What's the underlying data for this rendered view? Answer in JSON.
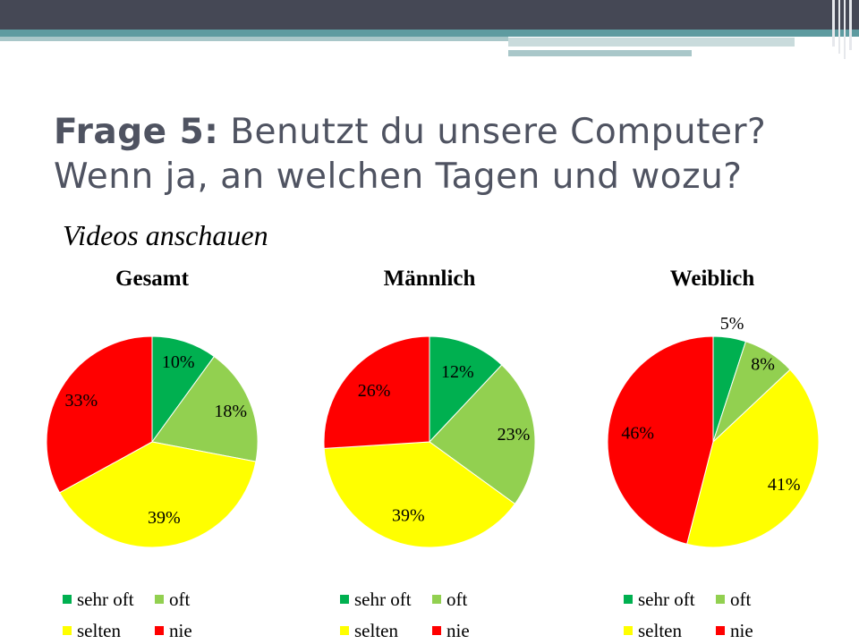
{
  "slide": {
    "title_bold": "Frage 5:",
    "title_rest": " Benutzt du unsere Computer? Wenn ja, an welchen Tagen und wozu?",
    "subtitle": "Videos anschauen"
  },
  "colors": {
    "sehr_oft": "#00b050",
    "oft": "#92d050",
    "selten": "#ffff00",
    "nie": "#ff0000"
  },
  "chart_data": [
    {
      "type": "pie",
      "title": "Gesamt",
      "categories": [
        "sehr oft",
        "oft",
        "selten",
        "nie"
      ],
      "values": [
        10,
        18,
        39,
        33
      ],
      "data_labels": [
        "10%",
        "18%",
        "39%",
        "33%"
      ],
      "legend_position": "bottom"
    },
    {
      "type": "pie",
      "title": "Männlich",
      "categories": [
        "sehr oft",
        "oft",
        "selten",
        "nie"
      ],
      "values": [
        12,
        23,
        39,
        26
      ],
      "data_labels": [
        "12%",
        "23%",
        "39%",
        "26%"
      ],
      "legend_position": "bottom"
    },
    {
      "type": "pie",
      "title": "Weiblich",
      "categories": [
        "sehr oft",
        "oft",
        "selten",
        "nie"
      ],
      "values": [
        5,
        8,
        41,
        46
      ],
      "data_labels": [
        "5%",
        "8%",
        "41%",
        "46%"
      ],
      "legend_position": "bottom"
    }
  ]
}
